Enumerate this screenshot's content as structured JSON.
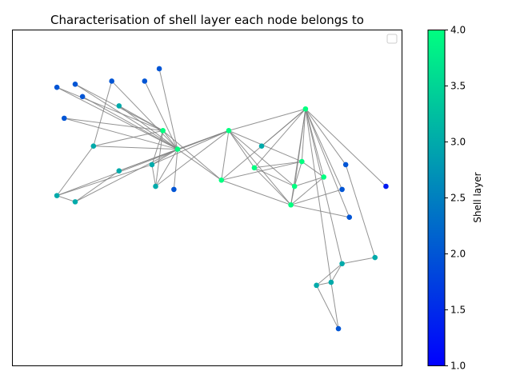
{
  "chart_data": {
    "type": "scatter",
    "subtype": "network-graph",
    "title": "Characterisation of shell layer each node belongs to",
    "xlabel": "",
    "ylabel": "",
    "legend": {
      "placement": "top-right",
      "entries": []
    },
    "grid": false,
    "axes_ticks_visible": false,
    "colorbar": {
      "label": "Shell layer",
      "min": 1.0,
      "max": 4.0,
      "ticks": [
        "1.0",
        "1.5",
        "2.0",
        "2.5",
        "3.0",
        "3.5",
        "4.0"
      ],
      "colormap": "winter",
      "low_color": "#0000ff",
      "high_color": "#00ff80"
    },
    "edge_color": "#808080",
    "nodes": [
      {
        "id": 0,
        "x": 0.42,
        "y": 0.66,
        "shell": 4
      },
      {
        "id": 1,
        "x": 0.54,
        "y": 0.56,
        "shell": 4
      },
      {
        "id": 2,
        "x": 0.77,
        "y": 0.79,
        "shell": 4
      },
      {
        "id": 3,
        "x": 0.73,
        "y": 0.48,
        "shell": 4
      },
      {
        "id": 4,
        "x": 0.38,
        "y": 0.72,
        "shell": 4
      },
      {
        "id": 5,
        "x": 0.56,
        "y": 0.72,
        "shell": 4
      },
      {
        "id": 6,
        "x": 0.76,
        "y": 0.62,
        "shell": 4
      },
      {
        "id": 7,
        "x": 0.74,
        "y": 0.54,
        "shell": 4
      },
      {
        "id": 8,
        "x": 0.82,
        "y": 0.57,
        "shell": 4
      },
      {
        "id": 9,
        "x": 0.63,
        "y": 0.6,
        "shell": 4
      },
      {
        "id": 10,
        "x": 0.26,
        "y": 0.8,
        "shell": 3
      },
      {
        "id": 11,
        "x": 0.19,
        "y": 0.67,
        "shell": 3
      },
      {
        "id": 12,
        "x": 0.36,
        "y": 0.54,
        "shell": 3
      },
      {
        "id": 13,
        "x": 0.26,
        "y": 0.59,
        "shell": 3
      },
      {
        "id": 14,
        "x": 0.65,
        "y": 0.67,
        "shell": 3
      },
      {
        "id": 15,
        "x": 0.35,
        "y": 0.61,
        "shell": 3
      },
      {
        "id": 16,
        "x": 0.09,
        "y": 0.51,
        "shell": 3
      },
      {
        "id": 17,
        "x": 0.14,
        "y": 0.49,
        "shell": 3
      },
      {
        "id": 18,
        "x": 0.87,
        "y": 0.29,
        "shell": 3
      },
      {
        "id": 19,
        "x": 0.84,
        "y": 0.23,
        "shell": 3
      },
      {
        "id": 20,
        "x": 0.96,
        "y": 0.31,
        "shell": 3
      },
      {
        "id": 21,
        "x": 0.8,
        "y": 0.22,
        "shell": 3
      },
      {
        "id": 22,
        "x": 0.14,
        "y": 0.87,
        "shell": 2
      },
      {
        "id": 23,
        "x": 0.09,
        "y": 0.86,
        "shell": 2
      },
      {
        "id": 24,
        "x": 0.16,
        "y": 0.83,
        "shell": 2
      },
      {
        "id": 25,
        "x": 0.24,
        "y": 0.88,
        "shell": 2
      },
      {
        "id": 26,
        "x": 0.33,
        "y": 0.88,
        "shell": 2
      },
      {
        "id": 27,
        "x": 0.37,
        "y": 0.92,
        "shell": 2
      },
      {
        "id": 28,
        "x": 0.11,
        "y": 0.76,
        "shell": 2
      },
      {
        "id": 29,
        "x": 0.41,
        "y": 0.53,
        "shell": 2
      },
      {
        "id": 30,
        "x": 0.88,
        "y": 0.61,
        "shell": 2
      },
      {
        "id": 31,
        "x": 0.87,
        "y": 0.53,
        "shell": 2
      },
      {
        "id": 32,
        "x": 0.89,
        "y": 0.44,
        "shell": 2
      },
      {
        "id": 33,
        "x": 0.86,
        "y": 0.08,
        "shell": 2
      },
      {
        "id": 34,
        "x": 0.99,
        "y": 0.54,
        "shell": 1.3
      }
    ],
    "edges": [
      [
        0,
        1
      ],
      [
        0,
        4
      ],
      [
        0,
        5
      ],
      [
        0,
        12
      ],
      [
        0,
        13
      ],
      [
        0,
        15
      ],
      [
        0,
        10
      ],
      [
        0,
        11
      ],
      [
        0,
        17
      ],
      [
        0,
        22
      ],
      [
        0,
        23
      ],
      [
        0,
        24
      ],
      [
        0,
        25
      ],
      [
        0,
        26
      ],
      [
        0,
        27
      ],
      [
        0,
        28
      ],
      [
        0,
        29
      ],
      [
        4,
        10
      ],
      [
        4,
        11
      ],
      [
        4,
        12
      ],
      [
        4,
        15
      ],
      [
        4,
        22
      ],
      [
        4,
        23
      ],
      [
        4,
        28
      ],
      [
        1,
        4
      ],
      [
        1,
        2
      ],
      [
        1,
        3
      ],
      [
        1,
        5
      ],
      [
        1,
        6
      ],
      [
        5,
        9
      ],
      [
        5,
        2
      ],
      [
        5,
        3
      ],
      [
        5,
        7
      ],
      [
        5,
        6
      ],
      [
        5,
        12
      ],
      [
        5,
        13
      ],
      [
        5,
        15
      ],
      [
        5,
        16
      ],
      [
        9,
        2
      ],
      [
        9,
        3
      ],
      [
        9,
        6
      ],
      [
        9,
        7
      ],
      [
        2,
        3
      ],
      [
        2,
        6
      ],
      [
        2,
        7
      ],
      [
        2,
        8
      ],
      [
        2,
        14
      ],
      [
        2,
        18
      ],
      [
        2,
        19
      ],
      [
        2,
        30
      ],
      [
        2,
        31
      ],
      [
        2,
        32
      ],
      [
        2,
        34
      ],
      [
        3,
        7
      ],
      [
        3,
        8
      ],
      [
        3,
        31
      ],
      [
        3,
        32
      ],
      [
        6,
        7
      ],
      [
        6,
        8
      ],
      [
        7,
        8
      ],
      [
        13,
        17
      ],
      [
        16,
        17
      ],
      [
        16,
        11
      ],
      [
        16,
        15
      ],
      [
        15,
        12
      ],
      [
        11,
        25
      ],
      [
        18,
        19
      ],
      [
        18,
        21
      ],
      [
        18,
        20
      ],
      [
        19,
        21
      ],
      [
        19,
        33
      ],
      [
        21,
        33
      ],
      [
        20,
        30
      ]
    ]
  }
}
